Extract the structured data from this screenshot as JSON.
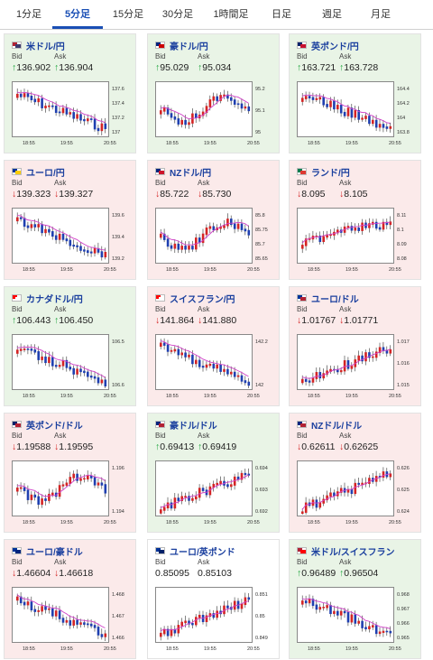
{
  "tabs": [
    "1分足",
    "5分足",
    "15分足",
    "30分足",
    "1時間足",
    "日足",
    "週足",
    "月足"
  ],
  "active_tab": "5分足",
  "labels": {
    "bid": "Bid",
    "ask": "Ask"
  },
  "colors": {
    "up_bg": "#e9f4e6",
    "down_bg": "#fbeaea",
    "up_arrow": "#1aa33a",
    "down_arrow": "#d42424",
    "accent": "#1a4fb5"
  },
  "x_ticks": [
    "18:55",
    "19:55",
    "20:55"
  ],
  "pairs": [
    {
      "name": "米ドル/円",
      "dir": "up",
      "bid": "136.902",
      "ask": "136.904",
      "yticks": [
        "137.6",
        "137.4",
        "137.2",
        "137"
      ],
      "flag": [
        "#b22234",
        "#3c3b6e"
      ],
      "trend": "down"
    },
    {
      "name": "豪ドル/円",
      "dir": "up",
      "bid": "95.029",
      "ask": "95.034",
      "yticks": [
        "95.2",
        "95.1",
        "95"
      ],
      "flag": [
        "#00247d",
        "#cc0000"
      ],
      "trend": "mixed"
    },
    {
      "name": "英ポンド/円",
      "dir": "up",
      "bid": "163.721",
      "ask": "163.728",
      "yticks": [
        "164.4",
        "164.2",
        "164",
        "163.8"
      ],
      "flag": [
        "#012169",
        "#c8102e"
      ],
      "trend": "down"
    },
    {
      "name": "ユーロ/円",
      "dir": "down",
      "bid": "139.323",
      "ask": "139.327",
      "yticks": [
        "139.6",
        "139.4",
        "139.2"
      ],
      "flag": [
        "#003399",
        "#ffcc00"
      ],
      "trend": "down"
    },
    {
      "name": "NZドル/円",
      "dir": "down",
      "bid": "85.722",
      "ask": "85.730",
      "yticks": [
        "85.8",
        "85.75",
        "85.7",
        "85.65"
      ],
      "flag": [
        "#00247d",
        "#cc142b"
      ],
      "trend": "mixed"
    },
    {
      "name": "ランド/円",
      "dir": "down",
      "bid": "8.095",
      "ask": "8.105",
      "yticks": [
        "8.11",
        "8.1",
        "8.09",
        "8.08"
      ],
      "flag": [
        "#007a4d",
        "#de3831"
      ],
      "trend": "upflat"
    },
    {
      "name": "カナダドル/円",
      "dir": "up",
      "bid": "106.443",
      "ask": "106.450",
      "yticks": [
        "106.5",
        "106.6"
      ],
      "flag": [
        "#ff0000",
        "#ffffff"
      ],
      "trend": "down"
    },
    {
      "name": "スイスフラン/円",
      "dir": "down",
      "bid": "141.864",
      "ask": "141.880",
      "yticks": [
        "142.2",
        "142"
      ],
      "flag": [
        "#ff0000",
        "#ffffff"
      ],
      "trend": "down"
    },
    {
      "name": "ユーロ/ドル",
      "dir": "down",
      "bid": "1.01767",
      "ask": "1.01771",
      "yticks": [
        "1.017",
        "1.016",
        "1.015"
      ],
      "flag": [
        "#003399",
        "#b22234"
      ],
      "trend": "up"
    },
    {
      "name": "英ポンド/ドル",
      "dir": "down",
      "bid": "1.19588",
      "ask": "1.19595",
      "yticks": [
        "1.196",
        "1.194"
      ],
      "flag": [
        "#012169",
        "#b22234"
      ],
      "trend": "mixed"
    },
    {
      "name": "豪ドル/ドル",
      "dir": "up",
      "bid": "0.69413",
      "ask": "0.69419",
      "yticks": [
        "0.694",
        "0.693",
        "0.692"
      ],
      "flag": [
        "#00247d",
        "#b22234"
      ],
      "trend": "up"
    },
    {
      "name": "NZドル/ドル",
      "dir": "down",
      "bid": "0.62611",
      "ask": "0.62625",
      "yticks": [
        "0.626",
        "0.625",
        "0.624"
      ],
      "flag": [
        "#00247d",
        "#b22234"
      ],
      "trend": "up"
    },
    {
      "name": "ユーロ/豪ドル",
      "dir": "down",
      "bid": "1.46604",
      "ask": "1.46618",
      "yticks": [
        "1.468",
        "1.467",
        "1.466"
      ],
      "flag": [
        "#003399",
        "#00247d"
      ],
      "trend": "down"
    },
    {
      "name": "ユーロ/英ポンド",
      "dir": "none",
      "bid": "0.85095",
      "ask": "0.85103",
      "yticks": [
        "0.851",
        "0.85",
        "0.849"
      ],
      "flag": [
        "#003399",
        "#012169"
      ],
      "trend": "up"
    },
    {
      "name": "米ドル/スイスフラン",
      "dir": "up",
      "bid": "0.96489",
      "ask": "0.96504",
      "yticks": [
        "0.968",
        "0.967",
        "0.966",
        "0.965"
      ],
      "flag": [
        "#b22234",
        "#ff0000"
      ],
      "trend": "down"
    }
  ]
}
